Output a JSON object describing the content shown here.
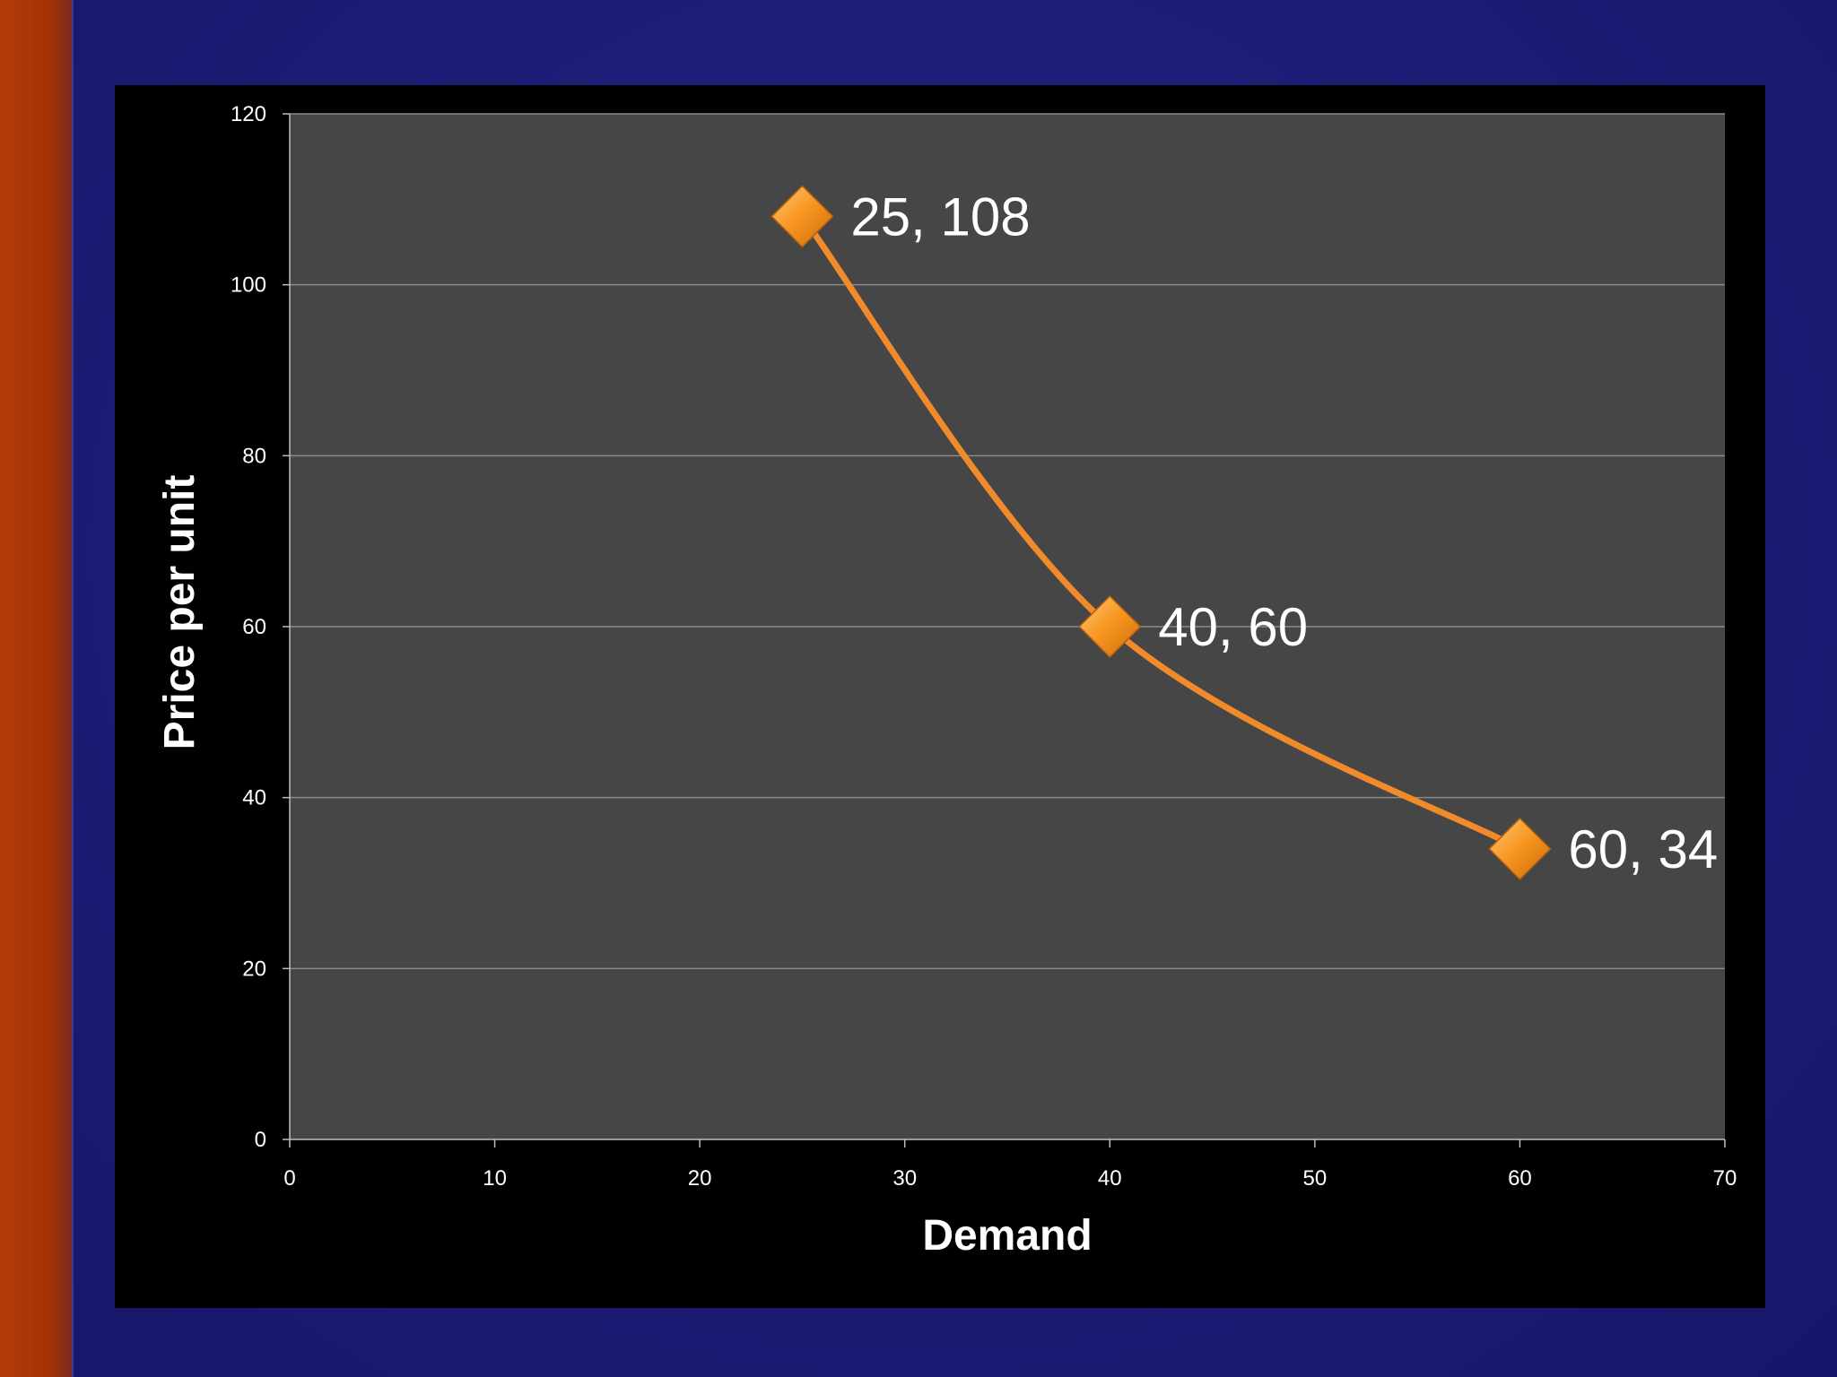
{
  "colors": {
    "background": "#1e1e78",
    "side_bar": "#a33204",
    "chart_background": "#000000",
    "plot_area": "#464646",
    "gridline": "#8a8a8a",
    "series": "#f08a2a",
    "text": "#ffffff"
  },
  "chart_data": {
    "type": "scatter",
    "title": "",
    "xlabel": "Demand",
    "ylabel": "Price per unit",
    "xlim": [
      0,
      70
    ],
    "ylim": [
      0,
      120
    ],
    "x_ticks": [
      "0",
      "10",
      "20",
      "30",
      "40",
      "50",
      "60",
      "70"
    ],
    "y_ticks": [
      "0",
      "20",
      "40",
      "60",
      "80",
      "100",
      "120"
    ],
    "grid": "horizontal",
    "legend": "none",
    "line": "smooth",
    "marker": "diamond",
    "series": [
      {
        "points": [
          {
            "x": 25,
            "y": 108,
            "label": "25, 108"
          },
          {
            "x": 40,
            "y": 60,
            "label": "40, 60"
          },
          {
            "x": 60,
            "y": 34,
            "label": "60, 34"
          }
        ]
      }
    ]
  }
}
